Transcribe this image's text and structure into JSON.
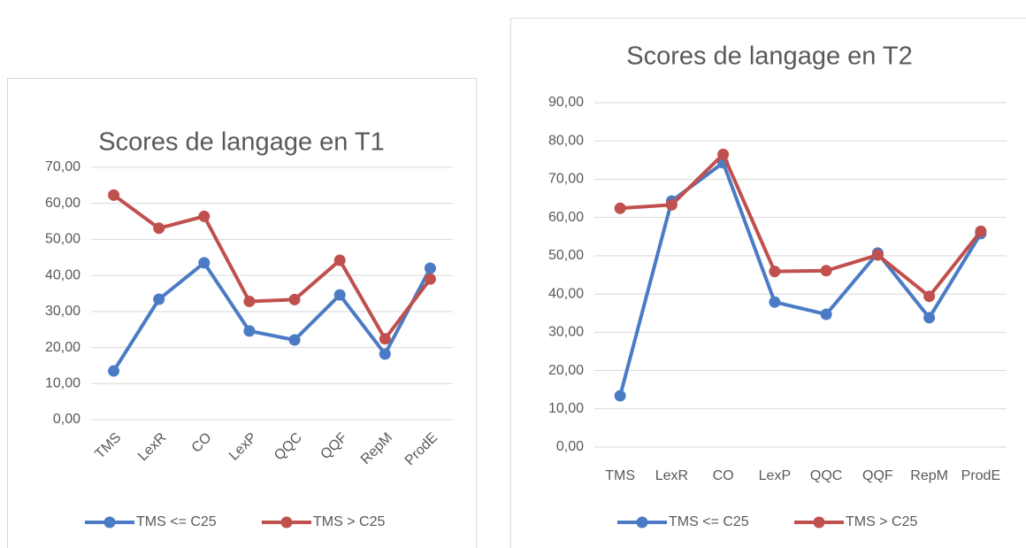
{
  "chart_data": [
    {
      "type": "line",
      "title": "Scores de langage en T1",
      "categories": [
        "TMS",
        "LexR",
        "CO",
        "LexP",
        "QQC",
        "QQF",
        "RepM",
        "ProdE"
      ],
      "series": [
        {
          "name": "TMS <= C25",
          "color": "#4a7bc4",
          "values": [
            13.5,
            33.4,
            43.5,
            24.6,
            22.1,
            34.6,
            18.2,
            42.0
          ]
        },
        {
          "name": "TMS > C25",
          "color": "#c0504d",
          "values": [
            62.3,
            53.1,
            56.4,
            32.8,
            33.3,
            44.2,
            22.4,
            39.0
          ]
        }
      ],
      "ylim": [
        0,
        70
      ],
      "yticks": [
        {
          "value": 0,
          "label": "0,00"
        },
        {
          "value": 10,
          "label": "10,00"
        },
        {
          "value": 20,
          "label": "20,00"
        },
        {
          "value": 30,
          "label": "30,00"
        },
        {
          "value": 40,
          "label": "40,00"
        },
        {
          "value": 50,
          "label": "50,00"
        },
        {
          "value": 60,
          "label": "60,00"
        },
        {
          "value": 70,
          "label": "70,00"
        }
      ],
      "grid": true,
      "legend": "bottom"
    },
    {
      "type": "line",
      "title": "Scores de langage en T2",
      "categories": [
        "TMS",
        "LexR",
        "CO",
        "LexP",
        "QQC",
        "QQF",
        "RepM",
        "ProdE"
      ],
      "series": [
        {
          "name": "TMS <= C25",
          "color": "#4a7bc4",
          "values": [
            13.4,
            64.3,
            74.3,
            37.9,
            34.7,
            50.7,
            33.8,
            55.8
          ]
        },
        {
          "name": "TMS > C25",
          "color": "#c0504d",
          "values": [
            62.4,
            63.3,
            76.5,
            45.9,
            46.1,
            50.2,
            39.4,
            56.4
          ]
        }
      ],
      "ylim": [
        0,
        90
      ],
      "yticks": [
        {
          "value": 0,
          "label": "0,00"
        },
        {
          "value": 10,
          "label": "10,00"
        },
        {
          "value": 20,
          "label": "20,00"
        },
        {
          "value": 30,
          "label": "30,00"
        },
        {
          "value": 40,
          "label": "40,00"
        },
        {
          "value": 50,
          "label": "50,00"
        },
        {
          "value": 60,
          "label": "60,00"
        },
        {
          "value": 70,
          "label": "70,00"
        },
        {
          "value": 80,
          "label": "80,00"
        },
        {
          "value": 90,
          "label": "90,00"
        }
      ],
      "grid": true,
      "legend": "bottom"
    }
  ]
}
